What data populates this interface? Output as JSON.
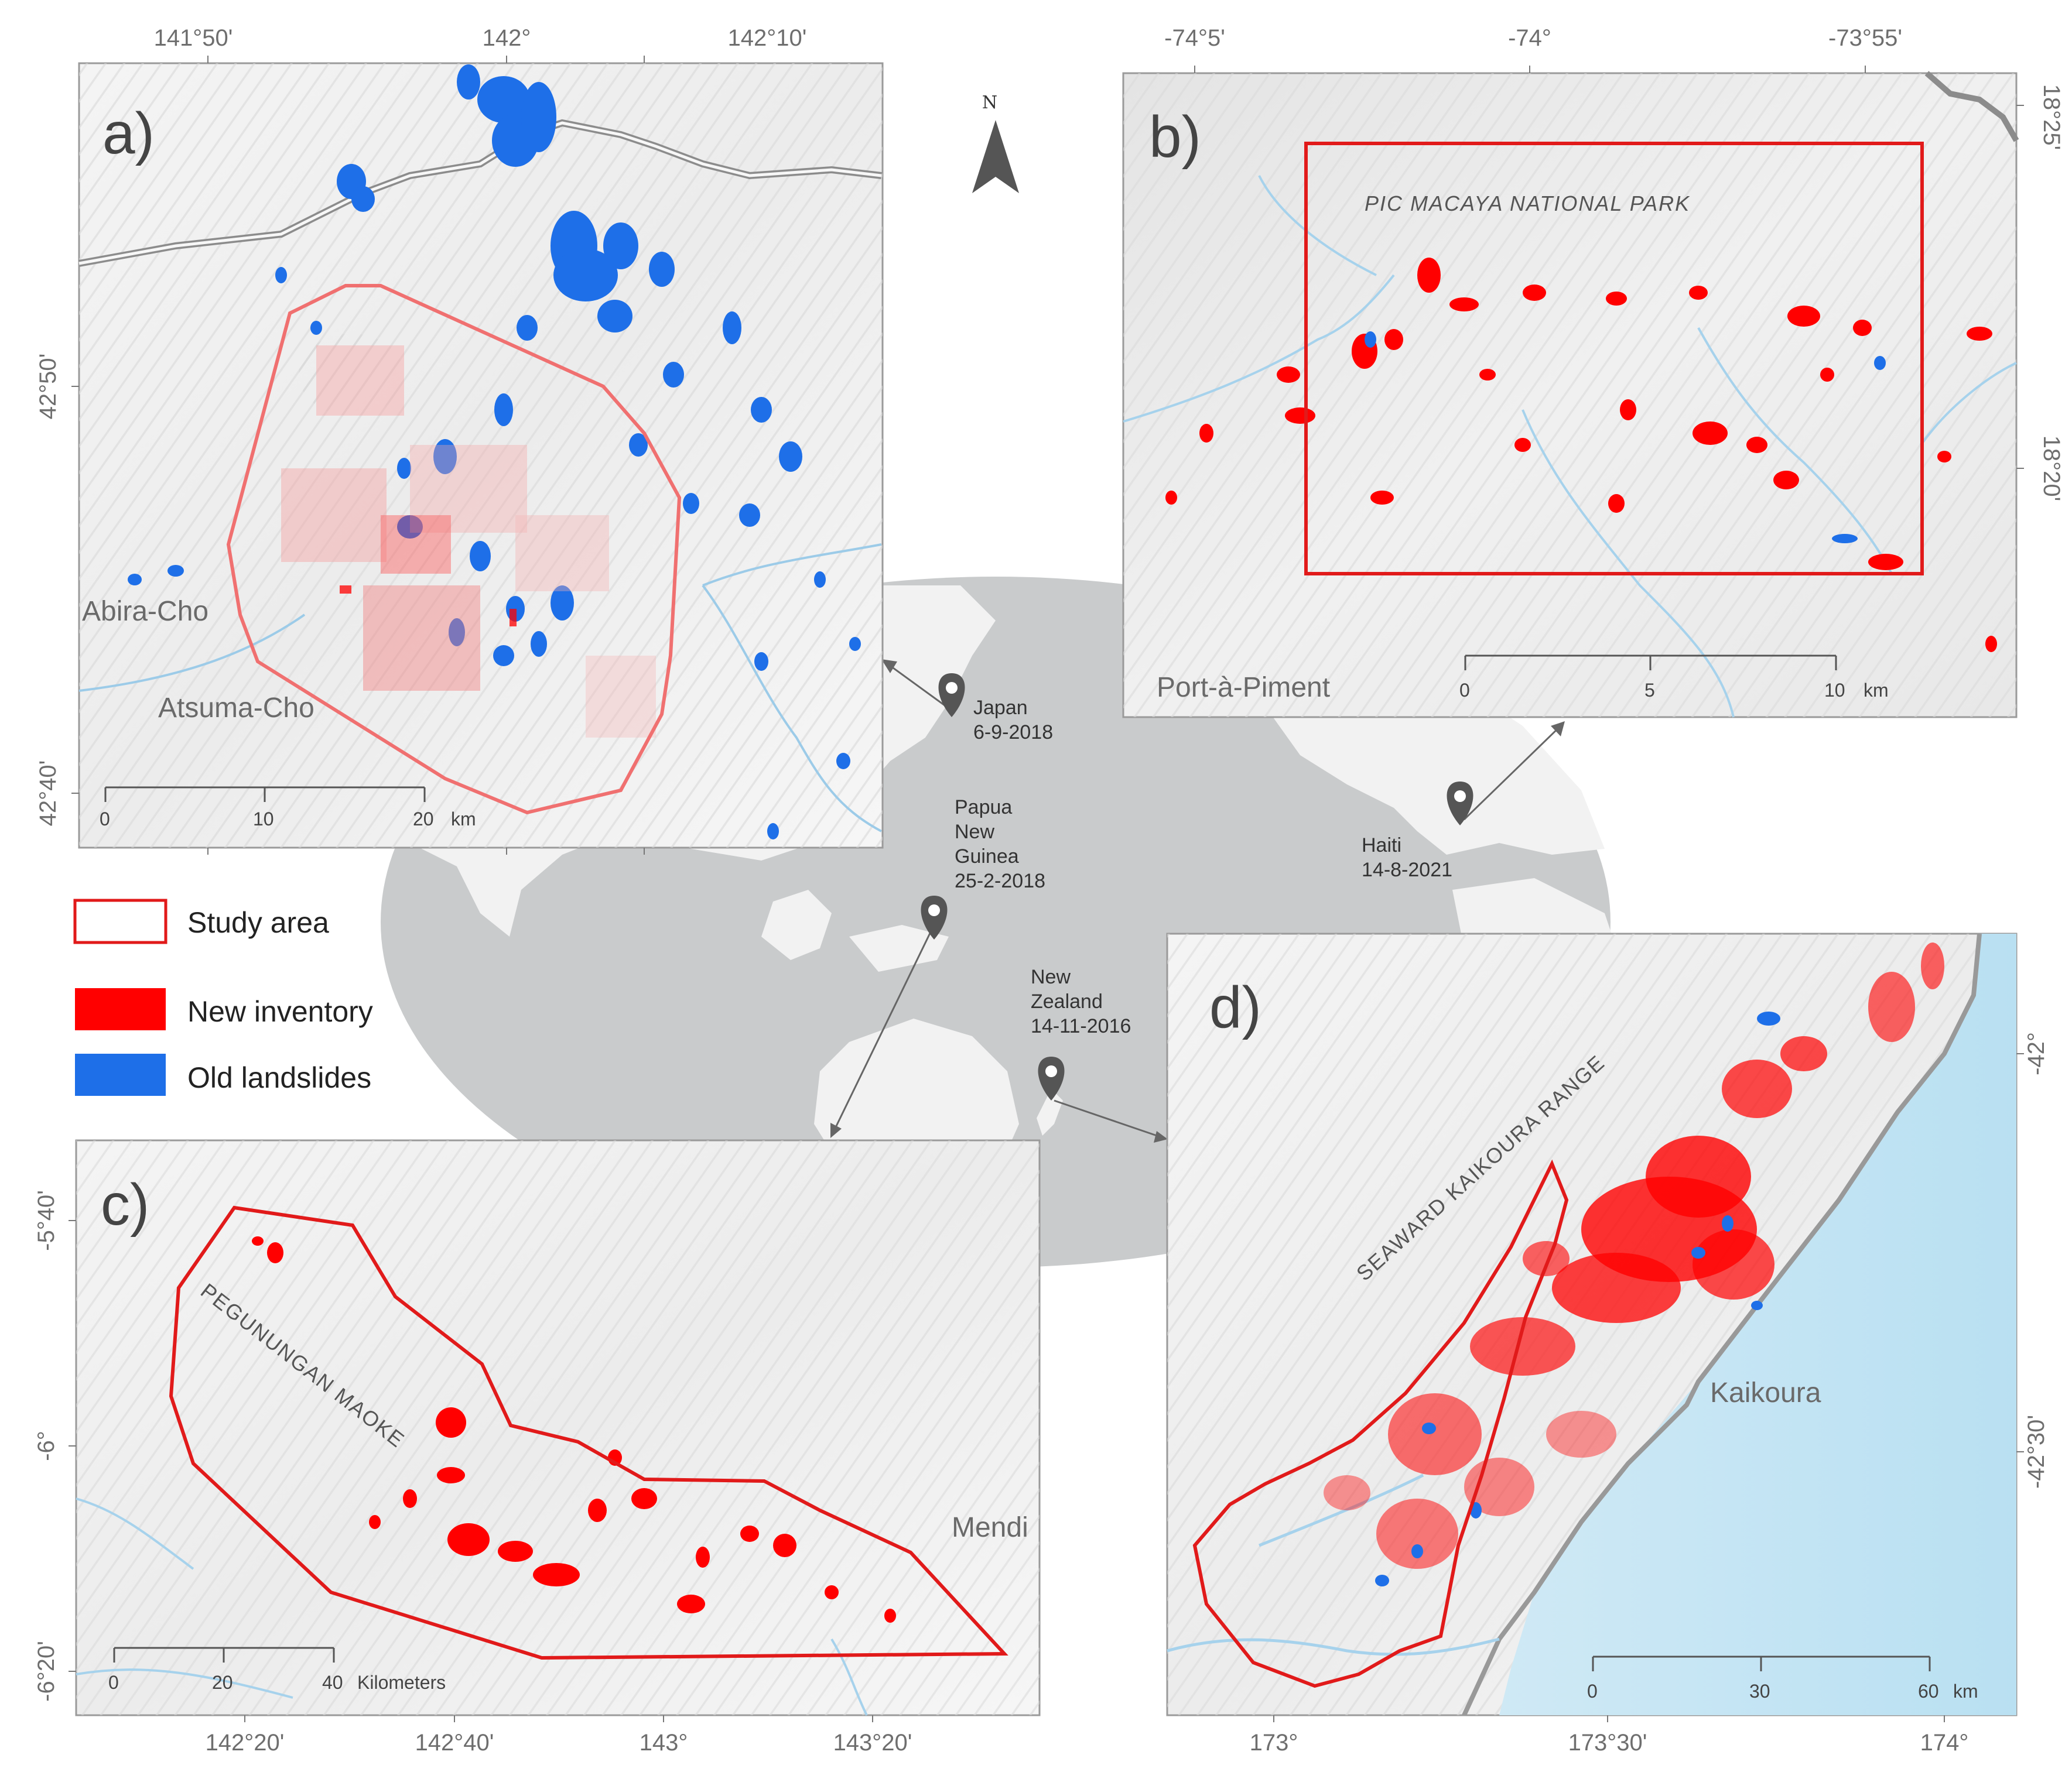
{
  "colors": {
    "new_inventory": "#ff0000",
    "old_landslides": "#1e6fe8",
    "study_area": "#e11a1a",
    "globe": "#c9cbcc",
    "land": "#f2f2f2",
    "sea": "#d6ecf6"
  },
  "north_arrow": {
    "label": "N",
    "icon": "north-arrow-icon"
  },
  "legend": {
    "study_area": "Study area",
    "new_inventory": "New inventory",
    "old_landslides": "Old landslides"
  },
  "events": {
    "japan": [
      "Japan",
      "6-9-2018"
    ],
    "haiti": [
      "Haiti",
      "14-8-2021"
    ],
    "png": [
      "Papua",
      "New",
      "Guinea",
      "25-2-2018"
    ],
    "nz": [
      "New",
      "Zealand",
      "14-11-2016"
    ]
  },
  "panel_a": {
    "letter": "a)",
    "lon_ticks": [
      "141°50'",
      "142°",
      "142°10'"
    ],
    "lat_ticks": [
      "42°50'",
      "42°40'"
    ],
    "places": [
      "Abira-Cho",
      "Atsuma-Cho"
    ],
    "scale": {
      "ticks": [
        "0",
        "10",
        "20"
      ],
      "unit": "km"
    }
  },
  "panel_b": {
    "letter": "b)",
    "lon_ticks": [
      "-74°5'",
      "-74°",
      "-73°55'"
    ],
    "lat_ticks": [
      "18°25'",
      "18°20'"
    ],
    "places": [
      "Port-à-Piment"
    ],
    "park": "PIC MACAYA NATIONAL PARK",
    "scale": {
      "ticks": [
        "0",
        "5",
        "10"
      ],
      "unit": "km"
    }
  },
  "panel_c": {
    "letter": "c)",
    "lon_ticks": [
      "142°20'",
      "142°40'",
      "143°",
      "143°20'"
    ],
    "lat_ticks": [
      "-5°40'",
      "-6°",
      "-6°20'"
    ],
    "places": [
      "Mendi"
    ],
    "range": "PEGUNUNGAN MAOKE",
    "scale": {
      "ticks": [
        "0",
        "20",
        "40"
      ],
      "unit": "Kilometers"
    }
  },
  "panel_d": {
    "letter": "d)",
    "lon_ticks": [
      "173°",
      "173°30'",
      "174°"
    ],
    "lat_ticks": [
      "-42°",
      "-42°30'"
    ],
    "places": [
      "Kaikoura"
    ],
    "range": "SEAWARD KAIKOURA RANGE",
    "scale": {
      "ticks": [
        "0",
        "30",
        "60"
      ],
      "unit": "km"
    }
  }
}
